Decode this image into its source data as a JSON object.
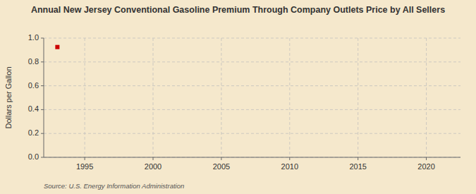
{
  "chart_data": {
    "type": "scatter",
    "title": "Annual New Jersey Conventional Gasoline Premium Through Company Outlets Price by All Sellers",
    "ylabel": "Dollars per Gallon",
    "source": "Source: U.S. Energy Information Administration",
    "x": [
      1993
    ],
    "values": [
      0.925
    ],
    "color": "#cc0000",
    "marker": "square",
    "xlim": [
      1992,
      2022.5
    ],
    "xticks": [
      1995,
      2000,
      2005,
      2010,
      2015,
      2020
    ],
    "ylim": [
      0,
      1
    ],
    "yticks": [
      {
        "value": 0,
        "label": "0.0"
      },
      0.2,
      0.4,
      0.6,
      0.8,
      {
        "value": 1,
        "label": "1.0"
      }
    ],
    "grid": true
  }
}
